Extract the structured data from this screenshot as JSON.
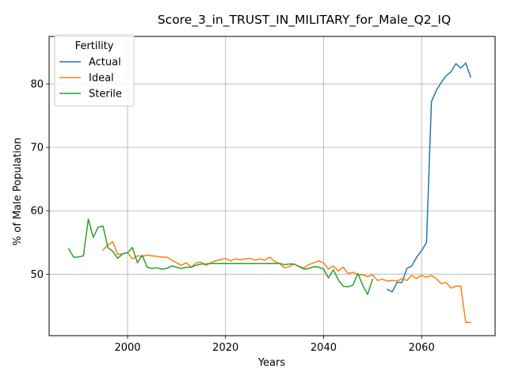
{
  "chart_data": {
    "type": "line",
    "title": "Score_3_in_TRUST_IN_MILITARY_for_Male_Q2_IQ",
    "xlabel": "Years",
    "ylabel": "% of Male Population",
    "xlim": [
      1984,
      2075
    ],
    "ylim": [
      40.3,
      87.5
    ],
    "xticks": [
      2000,
      2020,
      2040,
      2060
    ],
    "yticks": [
      50,
      60,
      70,
      80
    ],
    "grid": true,
    "legend": {
      "title": "Fertility",
      "placement": "top-left"
    },
    "series": [
      {
        "name": "Actual",
        "color": "#1f77b4",
        "x": [
          2053,
          2054,
          2055,
          2056,
          2057,
          2058,
          2059,
          2060,
          2061,
          2062,
          2063,
          2064,
          2065,
          2066,
          2067,
          2068,
          2069,
          2070
        ],
        "y": [
          47.6,
          47.2,
          48.7,
          48.7,
          50.9,
          51.3,
          52.7,
          53.7,
          55.0,
          77.2,
          79.0,
          80.2,
          81.3,
          81.9,
          83.2,
          82.5,
          83.3,
          81.1
        ]
      },
      {
        "name": "Ideal",
        "color": "#ff7f0e",
        "x": [
          1995,
          1996,
          1997,
          1998,
          1999,
          2000,
          2001,
          2002,
          2003,
          2004,
          2005,
          2006,
          2007,
          2008,
          2009,
          2010,
          2011,
          2012,
          2013,
          2014,
          2015,
          2016,
          2017,
          2018,
          2019,
          2020,
          2021,
          2022,
          2023,
          2024,
          2025,
          2026,
          2027,
          2028,
          2029,
          2030,
          2031,
          2032,
          2033,
          2034,
          2035,
          2036,
          2037,
          2038,
          2039,
          2040,
          2041,
          2042,
          2043,
          2044,
          2045,
          2046,
          2047,
          2048,
          2049,
          2050,
          2051,
          2052,
          2053,
          2054,
          2055,
          2056,
          2057,
          2058,
          2059,
          2060,
          2061,
          2062,
          2063,
          2064,
          2065,
          2066,
          2067,
          2068,
          2069,
          2070
        ],
        "y": [
          53.8,
          54.6,
          55.1,
          53.1,
          53.2,
          53.4,
          52.4,
          52.9,
          52.8,
          53.0,
          52.9,
          52.8,
          52.7,
          52.7,
          52.2,
          51.8,
          51.4,
          51.8,
          51.1,
          51.8,
          51.9,
          51.4,
          51.8,
          52.1,
          52.3,
          52.5,
          52.1,
          52.4,
          52.3,
          52.4,
          52.5,
          52.2,
          52.4,
          52.2,
          52.7,
          52.0,
          51.7,
          51.0,
          51.2,
          51.6,
          51.2,
          51.0,
          51.5,
          51.8,
          52.1,
          51.8,
          50.8,
          51.3,
          50.5,
          51.1,
          50.1,
          50.3,
          49.9,
          49.9,
          49.6,
          49.9,
          49.0,
          49.2,
          48.9,
          49.0,
          48.9,
          49.3,
          49.0,
          49.8,
          49.3,
          49.8,
          49.5,
          49.8,
          49.3,
          48.5,
          48.7,
          47.8,
          48.1,
          48.1,
          42.4,
          42.4
        ]
      },
      {
        "name": "Sterile",
        "color": "#2ca02c",
        "x": [
          1988,
          1989,
          1990,
          1991,
          1992,
          1993,
          1994,
          1995,
          1996,
          1997,
          1998,
          1999,
          2000,
          2001,
          2002,
          2003,
          2004,
          2005,
          2006,
          2007,
          2008,
          2009,
          2010,
          2011,
          2012,
          2013,
          2014,
          2015,
          2016,
          2017,
          2018,
          2019,
          2020,
          2021,
          2022,
          2023,
          2024,
          2025,
          2026,
          2027,
          2028,
          2029,
          2030,
          2031,
          2032,
          2033,
          2034,
          2035,
          2036,
          2037,
          2038,
          2039,
          2040,
          2041,
          2042,
          2043,
          2044,
          2045,
          2046,
          2047,
          2048,
          2049,
          2050
        ],
        "y": [
          54.0,
          52.7,
          52.7,
          52.9,
          58.7,
          55.8,
          57.4,
          57.6,
          54.2,
          53.6,
          52.5,
          53.2,
          53.4,
          54.2,
          51.8,
          53.0,
          51.1,
          50.9,
          51.0,
          50.8,
          50.9,
          51.3,
          51.1,
          50.9,
          51.1,
          51.1,
          51.4,
          51.6,
          51.6,
          51.7,
          51.7,
          51.7,
          51.7,
          51.7,
          51.7,
          51.7,
          51.7,
          51.7,
          51.7,
          51.7,
          51.7,
          51.7,
          51.7,
          51.7,
          51.5,
          51.6,
          51.6,
          51.2,
          50.8,
          50.9,
          51.2,
          51.1,
          50.8,
          49.4,
          50.7,
          49.1,
          48.1,
          48.0,
          48.3,
          50.1,
          48.2,
          46.8,
          49.2
        ]
      }
    ]
  }
}
